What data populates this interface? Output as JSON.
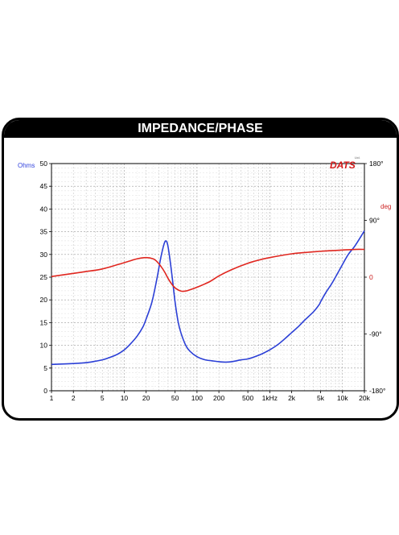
{
  "header": {
    "title": "IMPEDANCE/PHASE"
  },
  "logo": {
    "text": "DATS",
    "small": "Ltd."
  },
  "chart_data": {
    "type": "line",
    "xscale": "log",
    "xlim": [
      1,
      20000
    ],
    "xticks": [
      {
        "v": 1,
        "label": "1"
      },
      {
        "v": 2,
        "label": "2"
      },
      {
        "v": 5,
        "label": "5"
      },
      {
        "v": 10,
        "label": "10"
      },
      {
        "v": 20,
        "label": "20"
      },
      {
        "v": 50,
        "label": "50"
      },
      {
        "v": 100,
        "label": "100"
      },
      {
        "v": 200,
        "label": "200"
      },
      {
        "v": 500,
        "label": "500"
      },
      {
        "v": 1000,
        "label": "1kHz"
      },
      {
        "v": 2000,
        "label": "2k"
      },
      {
        "v": 5000,
        "label": "5k"
      },
      {
        "v": 10000,
        "label": "10k"
      },
      {
        "v": 20000,
        "label": "20k"
      }
    ],
    "ylabel_left": "Ohms",
    "ylim_left": [
      0,
      50
    ],
    "yticks_left": [
      "0",
      "5",
      "10",
      "15",
      "20",
      "25",
      "30",
      "35",
      "40",
      "45",
      "50"
    ],
    "ylabel_right": "deg",
    "ylim_right": [
      -180,
      180
    ],
    "yticks_right": [
      {
        "v": 180,
        "label": "180°"
      },
      {
        "v": 90,
        "label": "90°"
      },
      {
        "v": 0,
        "label": "0"
      },
      {
        "v": -90,
        "label": "-90°"
      },
      {
        "v": -180,
        "label": "-180°"
      }
    ],
    "grid": true,
    "colors": {
      "impedance": "#2b3fd6",
      "phase": "#e0261f"
    },
    "series": [
      {
        "key": "impedance",
        "axis": "left",
        "x": [
          1,
          1.5,
          2,
          3,
          4,
          5,
          6,
          8,
          10,
          12,
          15,
          18,
          20,
          24,
          28,
          32,
          36,
          39,
          42,
          46,
          50,
          55,
          60,
          70,
          80,
          100,
          130,
          160,
          200,
          250,
          300,
          350,
          400,
          500,
          600,
          700,
          800,
          1000,
          1300,
          1600,
          2000,
          2500,
          3000,
          4000,
          4800,
          5000,
          6000,
          7000,
          8000,
          10000,
          12000,
          15000,
          20000
        ],
        "y": [
          5.8,
          5.9,
          6.0,
          6.2,
          6.5,
          6.8,
          7.2,
          8.0,
          9.0,
          10.2,
          12.0,
          14.0,
          15.8,
          19.5,
          24.5,
          29.5,
          32.7,
          32.5,
          29.5,
          24.5,
          19.5,
          15.2,
          12.8,
          10.0,
          8.7,
          7.5,
          6.8,
          6.6,
          6.4,
          6.3,
          6.4,
          6.6,
          6.8,
          7.0,
          7.4,
          7.8,
          8.2,
          9.0,
          10.2,
          11.4,
          12.8,
          14.2,
          15.5,
          17.4,
          19.0,
          19.6,
          21.8,
          23.4,
          25.0,
          27.8,
          30.0,
          32.0,
          35.2
        ]
      },
      {
        "key": "phase",
        "axis": "right",
        "x": [
          1,
          2,
          3,
          5,
          10,
          15,
          20,
          25,
          28,
          32,
          36,
          40,
          45,
          50,
          60,
          70,
          80,
          100,
          150,
          200,
          300,
          500,
          700,
          1000,
          2000,
          3000,
          5000,
          7000,
          10000,
          15000,
          20000
        ],
        "y": [
          1,
          6,
          9,
          13,
          23,
          29,
          31,
          29,
          25,
          17,
          8,
          -2,
          -11,
          -17,
          -22,
          -22,
          -20,
          -16,
          -7,
          2,
          12,
          22,
          27,
          31,
          37,
          39,
          41,
          42,
          43,
          44,
          44
        ]
      }
    ]
  }
}
